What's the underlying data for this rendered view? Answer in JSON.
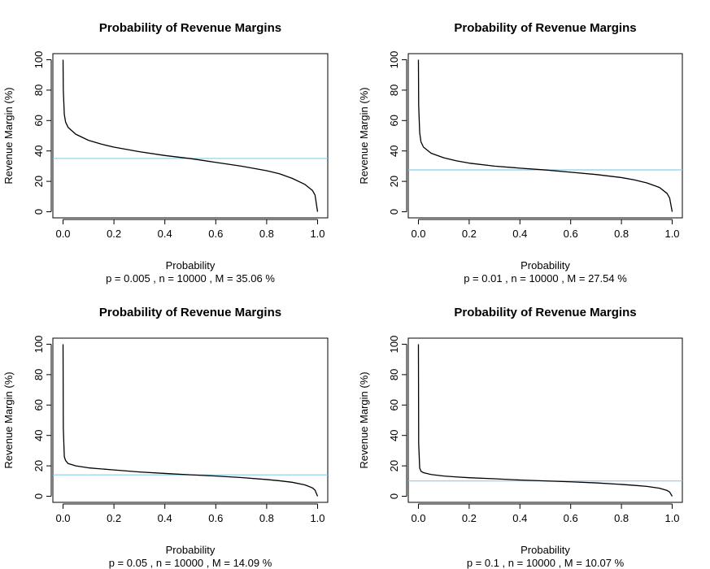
{
  "chart_data": [
    {
      "type": "line",
      "title": "Probability of Revenue Margins",
      "xlabel": "Probability",
      "subtitle": "p = 0.005 , n = 10000 , M = 35.06 %",
      "ylabel": "Revenue Margin (%)",
      "xlim": [
        0,
        1
      ],
      "ylim": [
        0,
        100
      ],
      "xticks": [
        "0.0",
        "0.2",
        "0.4",
        "0.6",
        "0.8",
        "1.0"
      ],
      "yticks": [
        "0",
        "20",
        "40",
        "60",
        "80",
        "100"
      ],
      "series": [
        {
          "color": "#000000",
          "x": [
            0.0,
            0.001,
            0.005,
            0.01,
            0.02,
            0.05,
            0.1,
            0.15,
            0.2,
            0.3,
            0.4,
            0.5,
            0.6,
            0.7,
            0.8,
            0.85,
            0.9,
            0.95,
            0.98,
            0.99,
            1.0
          ],
          "y": [
            100,
            80,
            64,
            59,
            55.5,
            51,
            47,
            44.5,
            42.5,
            39.5,
            37,
            35,
            32.5,
            30,
            27,
            25,
            22,
            18,
            14,
            11,
            0
          ]
        }
      ],
      "hline": {
        "y": 35.06,
        "color": "#87ceeb"
      }
    },
    {
      "type": "line",
      "title": "Probability of Revenue Margins",
      "xlabel": "Probability",
      "subtitle": "p = 0.01 , n = 10000 , M = 27.54 %",
      "ylabel": "Revenue Margin (%)",
      "xlim": [
        0,
        1
      ],
      "ylim": [
        0,
        100
      ],
      "xticks": [
        "0.0",
        "0.2",
        "0.4",
        "0.6",
        "0.8",
        "1.0"
      ],
      "yticks": [
        "0",
        "20",
        "40",
        "60",
        "80",
        "100"
      ],
      "series": [
        {
          "color": "#000000",
          "x": [
            0.0,
            0.001,
            0.005,
            0.01,
            0.02,
            0.05,
            0.1,
            0.15,
            0.2,
            0.3,
            0.4,
            0.5,
            0.6,
            0.7,
            0.8,
            0.85,
            0.9,
            0.95,
            0.98,
            0.99,
            1.0
          ],
          "y": [
            100,
            70,
            52,
            46,
            42.5,
            38.5,
            35.5,
            33.5,
            32,
            30,
            28.7,
            27.5,
            26,
            24.5,
            22.5,
            21,
            19,
            16,
            12,
            9,
            0
          ]
        }
      ],
      "hline": {
        "y": 27.54,
        "color": "#87ceeb"
      }
    },
    {
      "type": "line",
      "title": "Probability of Revenue Margins",
      "xlabel": "Probability",
      "subtitle": "p = 0.05 , n = 10000 , M = 14.09 %",
      "ylabel": "Revenue Margin (%)",
      "xlim": [
        0,
        1
      ],
      "ylim": [
        0,
        100
      ],
      "xticks": [
        "0.0",
        "0.2",
        "0.4",
        "0.6",
        "0.8",
        "1.0"
      ],
      "yticks": [
        "0",
        "20",
        "40",
        "60",
        "80",
        "100"
      ],
      "series": [
        {
          "color": "#000000",
          "x": [
            0.0,
            0.001,
            0.005,
            0.01,
            0.02,
            0.05,
            0.1,
            0.15,
            0.2,
            0.3,
            0.4,
            0.5,
            0.6,
            0.7,
            0.8,
            0.85,
            0.9,
            0.95,
            0.98,
            0.99,
            1.0
          ],
          "y": [
            100,
            45,
            26,
            23.5,
            21.5,
            20,
            18.7,
            18,
            17.3,
            16,
            15,
            14.1,
            13.3,
            12.3,
            11,
            10.2,
            9.2,
            7.5,
            5.5,
            4,
            0
          ]
        }
      ],
      "hline": {
        "y": 14.09,
        "color": "#87ceeb"
      }
    },
    {
      "type": "line",
      "title": "Probability of Revenue Margins",
      "xlabel": "Probability",
      "subtitle": "p = 0.1 , n = 10000 , M = 10.07 %",
      "ylabel": "Revenue Margin (%)",
      "xlim": [
        0,
        1
      ],
      "ylim": [
        0,
        100
      ],
      "xticks": [
        "0.0",
        "0.2",
        "0.4",
        "0.6",
        "0.8",
        "1.0"
      ],
      "yticks": [
        "0",
        "20",
        "40",
        "60",
        "80",
        "100"
      ],
      "series": [
        {
          "color": "#000000",
          "x": [
            0.0,
            0.001,
            0.005,
            0.01,
            0.02,
            0.05,
            0.1,
            0.15,
            0.2,
            0.3,
            0.4,
            0.5,
            0.6,
            0.7,
            0.8,
            0.85,
            0.9,
            0.95,
            0.98,
            0.99,
            1.0
          ],
          "y": [
            100,
            35,
            18.5,
            16.5,
            15.5,
            14.3,
            13.3,
            12.7,
            12.2,
            11.5,
            10.7,
            10.1,
            9.5,
            8.8,
            7.8,
            7.2,
            6.5,
            5.3,
            3.8,
            2.8,
            0
          ]
        }
      ],
      "hline": {
        "y": 10.07,
        "color": "#87ceeb"
      }
    }
  ]
}
